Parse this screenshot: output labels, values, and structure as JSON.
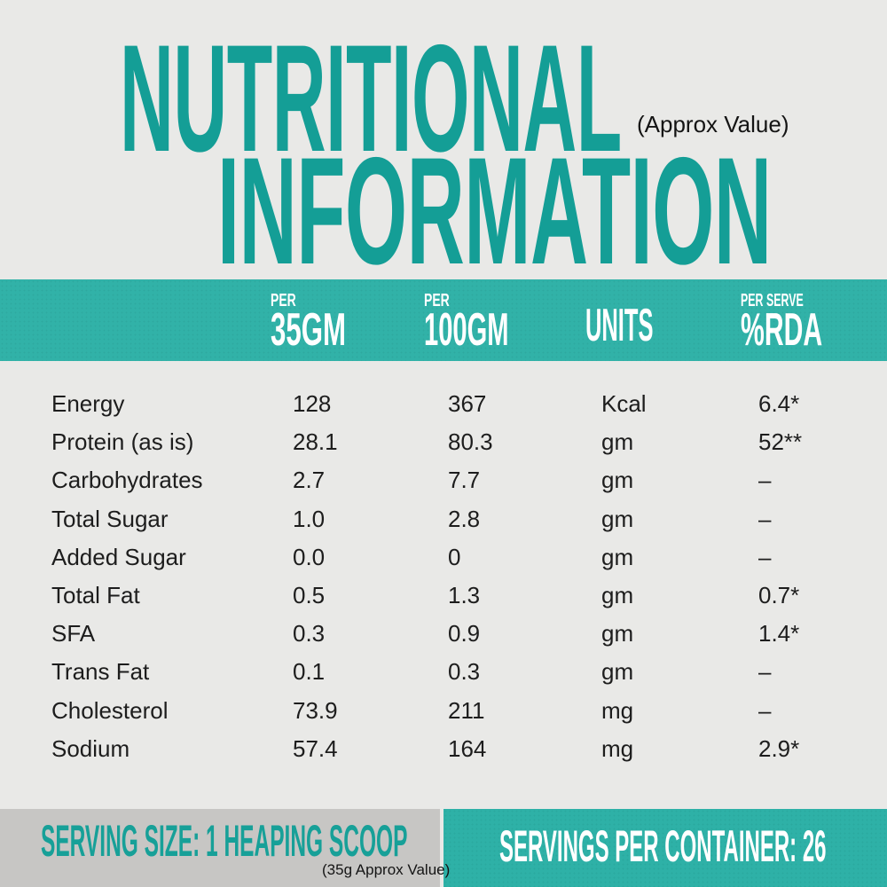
{
  "title": {
    "line1": "NUTRITIONAL",
    "line2": "INFORMATION",
    "approx_note": "(Approx Value)"
  },
  "colors": {
    "background": "#e9e9e7",
    "title_teal": "#149e96",
    "band_teal": "#31b2a8",
    "footer_teal": "#2eb1a7",
    "footer_gray": "#c7c6c4",
    "text_dark": "#1d1d1d",
    "header_text": "#ffffff"
  },
  "table": {
    "header": {
      "per35_small": "PER",
      "per35_big": "35GM",
      "per100_small": "PER",
      "per100_big": "100GM",
      "units": "UNITS",
      "rda_small": "PER SERVE",
      "rda_big": "%RDA"
    },
    "rows": [
      {
        "label": "Energy",
        "per35": "128",
        "per100": "367",
        "units": "Kcal",
        "rda": "6.4*"
      },
      {
        "label": "Protein (as is)",
        "per35": "28.1",
        "per100": "80.3",
        "units": "gm",
        "rda": "52**"
      },
      {
        "label": "Carbohydrates",
        "per35": "2.7",
        "per100": "7.7",
        "units": "gm",
        "rda": "–"
      },
      {
        "label": "Total Sugar",
        "per35": "1.0",
        "per100": "2.8",
        "units": "gm",
        "rda": "–"
      },
      {
        "label": "Added Sugar",
        "per35": "0.0",
        "per100": "0",
        "units": "gm",
        "rda": "–"
      },
      {
        "label": "Total Fat",
        "per35": "0.5",
        "per100": "1.3",
        "units": "gm",
        "rda": "0.7*"
      },
      {
        "label": "SFA",
        "per35": "0.3",
        "per100": "0.9",
        "units": "gm",
        "rda": "1.4*"
      },
      {
        "label": "Trans Fat",
        "per35": "0.1",
        "per100": "0.3",
        "units": "gm",
        "rda": "–"
      },
      {
        "label": "Cholesterol",
        "per35": "73.9",
        "per100": "211",
        "units": "mg",
        "rda": "–"
      },
      {
        "label": "Sodium",
        "per35": "57.4",
        "per100": "164",
        "units": "mg",
        "rda": "2.9*"
      }
    ]
  },
  "footer": {
    "serving_size": "SERVING SIZE: 1 HEAPING SCOOP",
    "serving_note": "(35g Approx Value)",
    "servings_per_container": "SERVINGS PER CONTAINER: 26"
  }
}
